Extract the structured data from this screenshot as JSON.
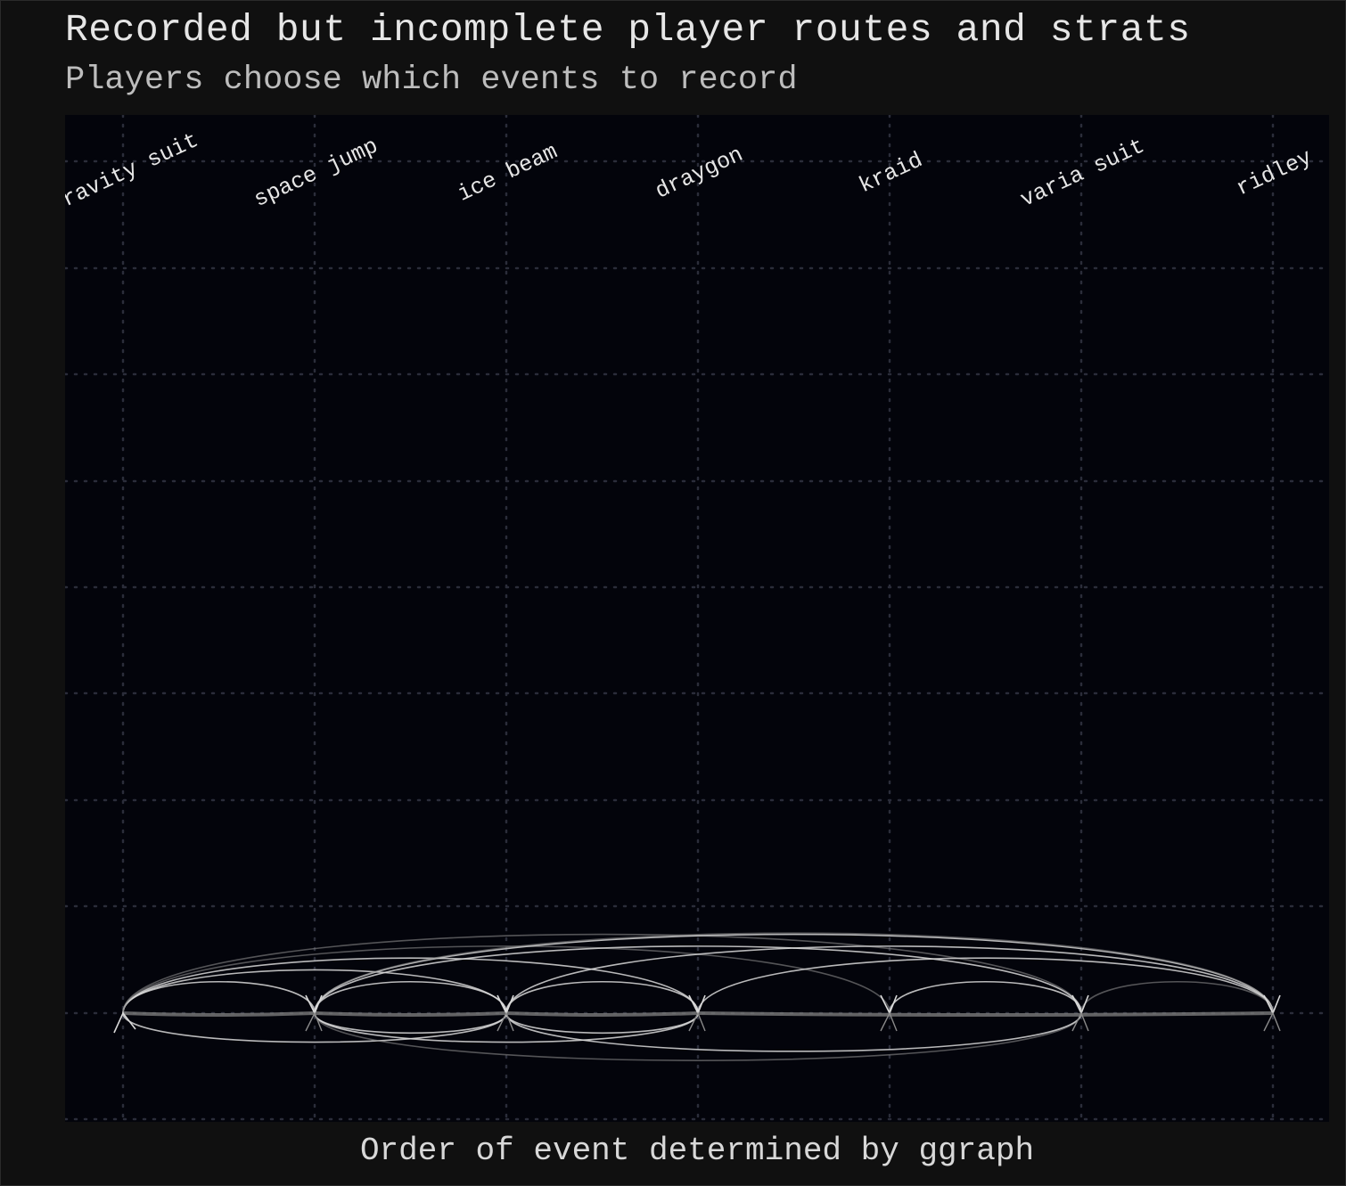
{
  "title": "Recorded but incomplete player routes and strats",
  "subtitle": "Players choose which events to record",
  "xlabel": "Order of event determined by ggraph",
  "colors": {
    "background": "#101010",
    "panel": "#03040b",
    "grid": "#2b2d3a",
    "edge_bright": "#d9d9d9",
    "edge_dim": "#8a8a8a",
    "text": "#e6e6e6"
  },
  "chart_data": {
    "type": "arc-diagram",
    "nodes": [
      "gravity suit",
      "space jump",
      "ice beam",
      "draygon",
      "kraid",
      "varia suit",
      "ridley"
    ],
    "edges": [
      {
        "from": "gravity suit",
        "to": "space jump",
        "side": "above",
        "strength": "bright"
      },
      {
        "from": "gravity suit",
        "to": "space jump",
        "side": "line",
        "strength": "bright"
      },
      {
        "from": "gravity suit",
        "to": "ice beam",
        "side": "above",
        "strength": "bright"
      },
      {
        "from": "gravity suit",
        "to": "draygon",
        "side": "above",
        "strength": "bright"
      },
      {
        "from": "gravity suit",
        "to": "kraid",
        "side": "above",
        "strength": "dim"
      },
      {
        "from": "gravity suit",
        "to": "varia suit",
        "side": "above",
        "strength": "dim"
      },
      {
        "from": "gravity suit",
        "to": "ice beam",
        "side": "below",
        "strength": "bright"
      },
      {
        "from": "space jump",
        "to": "ice beam",
        "side": "above",
        "strength": "bright"
      },
      {
        "from": "space jump",
        "to": "ice beam",
        "side": "line",
        "strength": "bright"
      },
      {
        "from": "space jump",
        "to": "ice beam",
        "side": "below",
        "strength": "bright"
      },
      {
        "from": "space jump",
        "to": "draygon",
        "side": "below",
        "strength": "bright"
      },
      {
        "from": "space jump",
        "to": "ridley",
        "side": "above",
        "strength": "bright"
      },
      {
        "from": "space jump",
        "to": "ridley",
        "side": "above",
        "strength": "dim"
      },
      {
        "from": "space jump",
        "to": "varia suit",
        "side": "above",
        "strength": "bright"
      },
      {
        "from": "space jump",
        "to": "varia suit",
        "side": "below",
        "strength": "dim"
      },
      {
        "from": "ice beam",
        "to": "draygon",
        "side": "above",
        "strength": "bright"
      },
      {
        "from": "ice beam",
        "to": "draygon",
        "side": "below",
        "strength": "bright"
      },
      {
        "from": "ice beam",
        "to": "draygon",
        "side": "line",
        "strength": "bright"
      },
      {
        "from": "ice beam",
        "to": "ridley",
        "side": "above",
        "strength": "bright"
      },
      {
        "from": "ice beam",
        "to": "varia suit",
        "side": "below",
        "strength": "bright"
      },
      {
        "from": "draygon",
        "to": "ridley",
        "side": "above",
        "strength": "bright"
      },
      {
        "from": "kraid",
        "to": "varia suit",
        "side": "above",
        "strength": "bright"
      },
      {
        "from": "varia suit",
        "to": "ridley",
        "side": "above",
        "strength": "dim"
      },
      {
        "from": "draygon",
        "to": "ridley",
        "side": "line",
        "strength": "dim"
      }
    ],
    "grid": true,
    "legend": "none"
  }
}
